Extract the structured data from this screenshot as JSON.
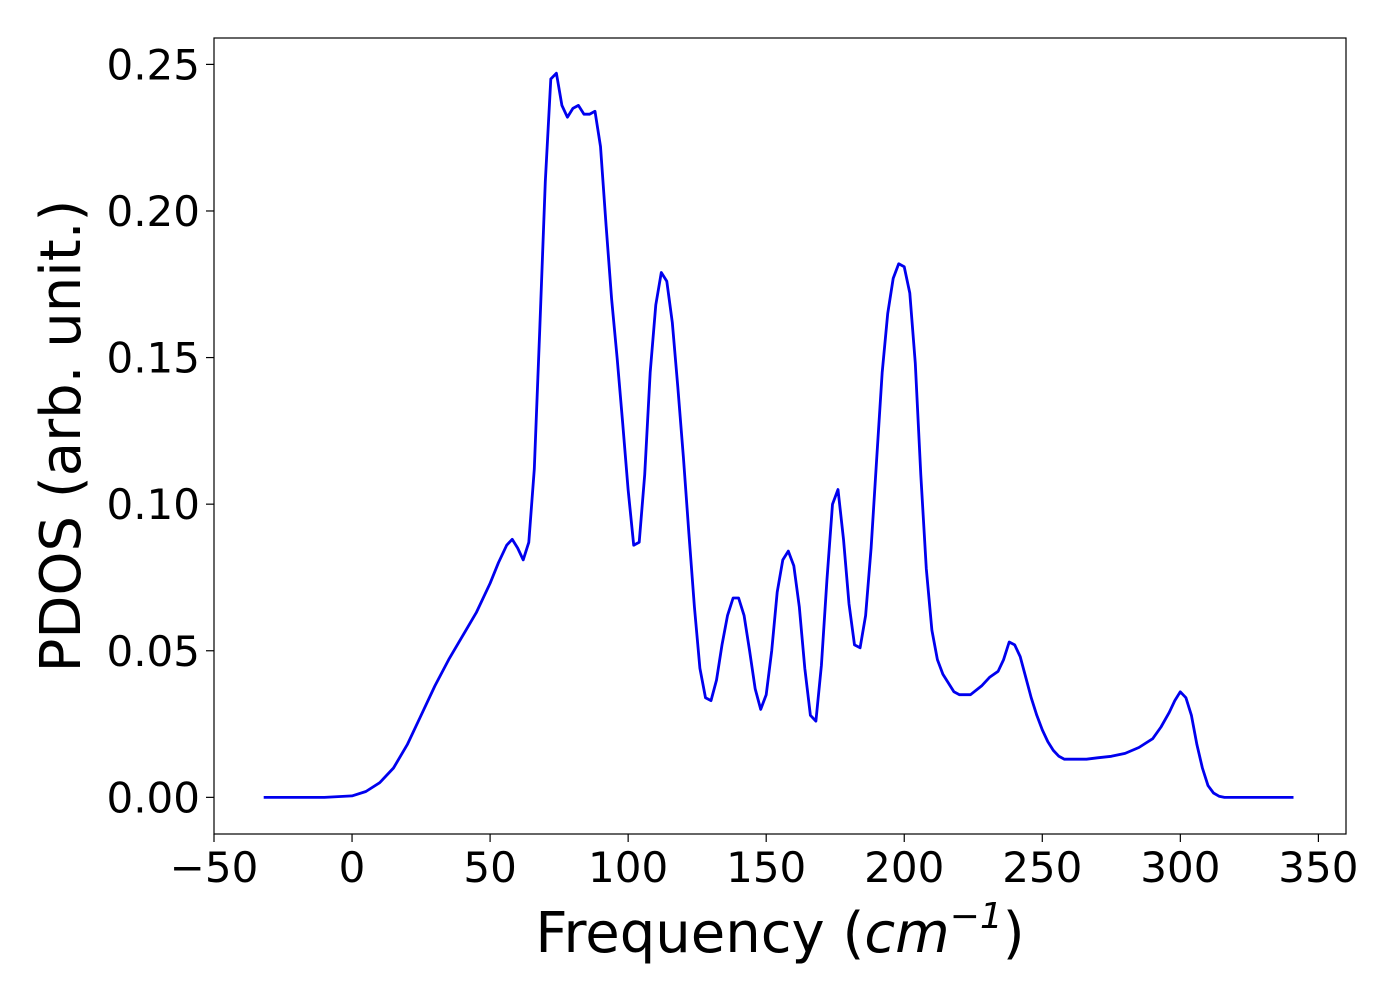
{
  "chart_data": {
    "type": "line",
    "title": "",
    "xlabel": "Frequency (",
    "xlabel_math": "cm",
    "xlabel_exp": "−1",
    "xlabel_close": ")",
    "ylabel": "PDOS (arb. unit.)",
    "xlim": [
      -50,
      360
    ],
    "ylim": [
      -0.0125,
      0.259
    ],
    "xticks": [
      -50,
      0,
      50,
      100,
      150,
      200,
      250,
      300,
      350
    ],
    "xtick_labels": [
      "−50",
      "0",
      "50",
      "100",
      "150",
      "200",
      "250",
      "300",
      "350"
    ],
    "yticks": [
      0.0,
      0.05,
      0.1,
      0.15,
      0.2,
      0.25
    ],
    "ytick_labels": [
      "0.00",
      "0.05",
      "0.10",
      "0.15",
      "0.20",
      "0.25"
    ],
    "grid": false,
    "line_color": "#0000ee",
    "series": [
      {
        "x": [
          -32,
          -20,
          -10,
          0,
          5,
          10,
          15,
          20,
          25,
          30,
          35,
          40,
          45,
          50,
          53,
          56,
          58,
          60,
          62,
          64,
          66,
          68,
          70,
          72,
          74,
          76,
          78,
          80,
          82,
          84,
          86,
          88,
          90,
          92,
          94,
          96,
          98,
          100,
          102,
          104,
          106,
          108,
          110,
          112,
          114,
          116,
          118,
          120,
          122,
          124,
          126,
          128,
          130,
          132,
          134,
          136,
          138,
          140,
          142,
          144,
          146,
          148,
          150,
          152,
          154,
          156,
          158,
          160,
          162,
          164,
          166,
          168,
          170,
          172,
          174,
          176,
          178,
          180,
          182,
          184,
          186,
          188,
          190,
          192,
          194,
          196,
          198,
          200,
          202,
          204,
          206,
          208,
          210,
          212,
          214,
          216,
          218,
          220,
          224,
          228,
          231,
          234,
          236,
          238,
          240,
          242,
          244,
          246,
          248,
          250,
          252,
          254,
          256,
          258,
          262,
          266,
          270,
          275,
          280,
          285,
          290,
          293,
          296,
          298,
          300,
          302,
          304,
          306,
          308,
          310,
          312,
          314,
          316,
          320,
          330,
          341
        ],
        "y": [
          0.0,
          0.0,
          0.0,
          0.0005,
          0.002,
          0.005,
          0.01,
          0.018,
          0.028,
          0.038,
          0.047,
          0.055,
          0.063,
          0.073,
          0.08,
          0.086,
          0.088,
          0.085,
          0.081,
          0.087,
          0.112,
          0.16,
          0.21,
          0.245,
          0.247,
          0.236,
          0.232,
          0.235,
          0.236,
          0.233,
          0.233,
          0.234,
          0.222,
          0.195,
          0.17,
          0.15,
          0.128,
          0.105,
          0.086,
          0.087,
          0.11,
          0.145,
          0.168,
          0.179,
          0.176,
          0.162,
          0.14,
          0.116,
          0.09,
          0.065,
          0.044,
          0.034,
          0.033,
          0.04,
          0.052,
          0.062,
          0.068,
          0.068,
          0.062,
          0.05,
          0.037,
          0.03,
          0.035,
          0.05,
          0.07,
          0.081,
          0.084,
          0.079,
          0.065,
          0.044,
          0.028,
          0.026,
          0.045,
          0.074,
          0.1,
          0.105,
          0.088,
          0.066,
          0.052,
          0.051,
          0.062,
          0.085,
          0.115,
          0.145,
          0.165,
          0.177,
          0.182,
          0.181,
          0.172,
          0.148,
          0.11,
          0.078,
          0.057,
          0.047,
          0.042,
          0.039,
          0.036,
          0.035,
          0.035,
          0.038,
          0.041,
          0.043,
          0.047,
          0.053,
          0.052,
          0.048,
          0.041,
          0.034,
          0.028,
          0.023,
          0.019,
          0.016,
          0.014,
          0.013,
          0.013,
          0.013,
          0.0135,
          0.014,
          0.015,
          0.017,
          0.02,
          0.024,
          0.029,
          0.033,
          0.036,
          0.034,
          0.028,
          0.018,
          0.01,
          0.004,
          0.0015,
          0.0004,
          0.0,
          0.0,
          0.0,
          0.0
        ]
      }
    ]
  }
}
